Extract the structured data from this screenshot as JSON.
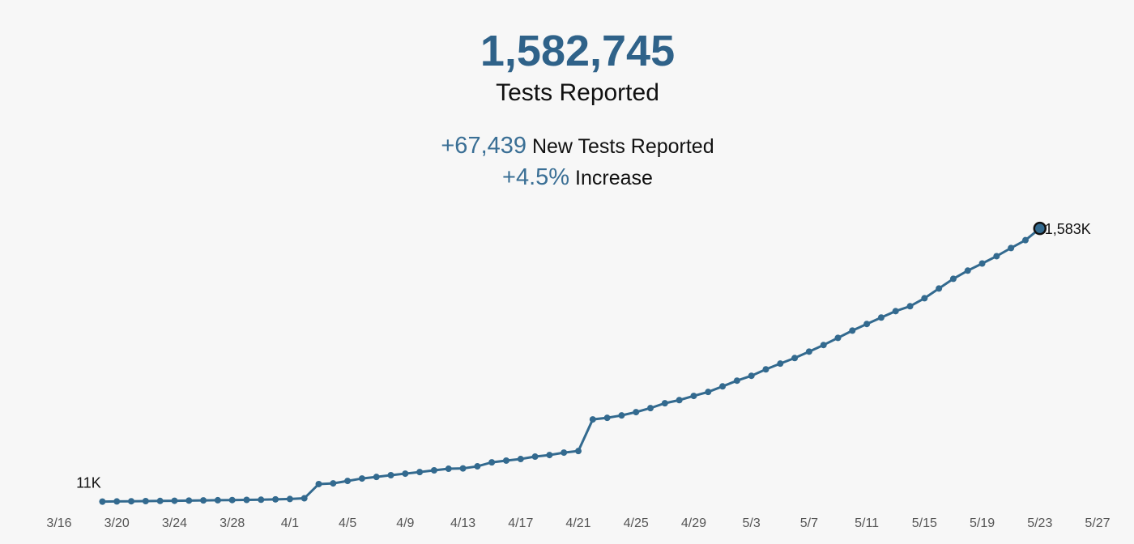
{
  "header": {
    "total": "1,582,745",
    "total_label": "Tests Reported",
    "new": "+67,439",
    "new_label": "New Tests Reported",
    "increase": "+4.5%",
    "increase_label": "Increase"
  },
  "chart_data": {
    "type": "line",
    "color": "#336a8f",
    "x": [
      "3/19",
      "3/20",
      "3/21",
      "3/22",
      "3/23",
      "3/24",
      "3/25",
      "3/26",
      "3/27",
      "3/28",
      "3/29",
      "3/30",
      "3/31",
      "4/1",
      "4/2",
      "4/3",
      "4/4",
      "4/5",
      "4/6",
      "4/7",
      "4/8",
      "4/9",
      "4/10",
      "4/11",
      "4/12",
      "4/13",
      "4/14",
      "4/15",
      "4/16",
      "4/17",
      "4/18",
      "4/19",
      "4/20",
      "4/21",
      "4/22",
      "4/23",
      "4/24",
      "4/25",
      "4/26",
      "4/27",
      "4/28",
      "4/29",
      "4/30",
      "5/1",
      "5/2",
      "5/3",
      "5/4",
      "5/5",
      "5/6",
      "5/7",
      "5/8",
      "5/9",
      "5/10",
      "5/11",
      "5/12",
      "5/13",
      "5/14",
      "5/15",
      "5/16",
      "5/17",
      "5/18",
      "5/19",
      "5/20",
      "5/21",
      "5/22",
      "5/23"
    ],
    "values": [
      11,
      12,
      13,
      14,
      15,
      16,
      17,
      18,
      19,
      20,
      21,
      22,
      24,
      26,
      30,
      112,
      116,
      130,
      144,
      153,
      163,
      172,
      181,
      191,
      200,
      202,
      214,
      237,
      247,
      256,
      270,
      279,
      293,
      302,
      484,
      493,
      507,
      526,
      549,
      577,
      595,
      619,
      642,
      674,
      707,
      735,
      772,
      805,
      837,
      874,
      912,
      953,
      995,
      1033,
      1070,
      1107,
      1135,
      1181,
      1237,
      1293,
      1340,
      1381,
      1423,
      1470,
      1515.306,
      1582.745
    ],
    "value_labels": [
      "11K",
      null,
      null,
      null,
      null,
      null,
      null,
      null,
      null,
      null,
      null,
      null,
      null,
      null,
      null,
      null,
      null,
      null,
      null,
      null,
      null,
      null,
      null,
      null,
      null,
      null,
      null,
      null,
      null,
      null,
      null,
      null,
      null,
      null,
      null,
      null,
      null,
      null,
      null,
      null,
      null,
      null,
      null,
      null,
      null,
      null,
      null,
      null,
      null,
      null,
      null,
      null,
      null,
      null,
      null,
      null,
      null,
      null,
      null,
      null,
      null,
      null,
      null,
      null,
      null,
      "1,583K"
    ],
    "xlim": [
      "3/16",
      "5/27"
    ],
    "xticks": [
      "3/16",
      "3/20",
      "3/24",
      "3/28",
      "4/1",
      "4/5",
      "4/9",
      "4/13",
      "4/17",
      "4/21",
      "4/25",
      "4/29",
      "5/3",
      "5/7",
      "5/11",
      "5/15",
      "5/19",
      "5/23",
      "5/27"
    ],
    "ylim": [
      0,
      1700
    ]
  }
}
